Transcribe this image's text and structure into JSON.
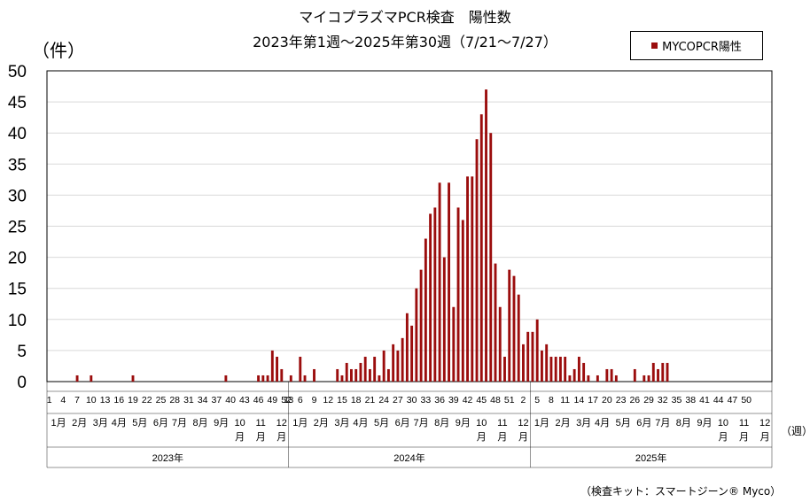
{
  "title_line1": "マイコプラズマPCR検査　陽性数",
  "title_line2": "2023年第1週～2025年第30週（7/21～7/27）",
  "y_unit": "（件）",
  "x_unit": "（週）",
  "source": "（検査キット：スマートジーン® Myco）",
  "colors": {
    "bar": "#9b0d0d",
    "grid": "#d9d9d9",
    "axis": "#000000"
  },
  "chart_data": {
    "type": "bar",
    "series": [
      {
        "name": "MYCOPCR陽性"
      }
    ],
    "ylim": [
      0,
      50
    ],
    "yticks": [
      0,
      5,
      10,
      15,
      20,
      25,
      30,
      35,
      40,
      45,
      50
    ],
    "grid": true,
    "legend_position": "top-right",
    "week_tick_labels": [
      "1",
      "4",
      "7",
      "10",
      "13",
      "16",
      "19",
      "22",
      "25",
      "28",
      "31",
      "34",
      "37",
      "40",
      "43",
      "46",
      "49",
      "52",
      "1",
      "3",
      "6",
      "9",
      "12",
      "15",
      "18",
      "21",
      "24",
      "27",
      "30",
      "33",
      "36",
      "39",
      "42",
      "45",
      "48",
      "51",
      "2",
      "5",
      "8",
      "11",
      "14",
      "17",
      "20",
      "23",
      "26",
      "29",
      "32",
      "35",
      "38",
      "41",
      "44",
      "47",
      "50"
    ],
    "month_labels": [
      {
        "label": "1月",
        "year": 2023,
        "week": 2.5
      },
      {
        "label": "2月",
        "year": 2023,
        "week": 7
      },
      {
        "label": "3月",
        "year": 2023,
        "week": 11.5
      },
      {
        "label": "4月",
        "year": 2023,
        "week": 15.5
      },
      {
        "label": "5月",
        "year": 2023,
        "week": 20
      },
      {
        "label": "6月",
        "year": 2023,
        "week": 24.5
      },
      {
        "label": "7月",
        "year": 2023,
        "week": 28.5
      },
      {
        "label": "8月",
        "year": 2023,
        "week": 33
      },
      {
        "label": "9月",
        "year": 2023,
        "week": 37.5
      },
      {
        "label": "10月",
        "year": 2023,
        "week": 41.5
      },
      {
        "label": "11月",
        "year": 2023,
        "week": 46
      },
      {
        "label": "12月",
        "year": 2023,
        "week": 50.5
      },
      {
        "label": "1月",
        "year": 2024,
        "week": 2.5
      },
      {
        "label": "2月",
        "year": 2024,
        "week": 7
      },
      {
        "label": "3月",
        "year": 2024,
        "week": 11.5
      },
      {
        "label": "4月",
        "year": 2024,
        "week": 15.5
      },
      {
        "label": "5月",
        "year": 2024,
        "week": 20
      },
      {
        "label": "6月",
        "year": 2024,
        "week": 24.5
      },
      {
        "label": "7月",
        "year": 2024,
        "week": 28.5
      },
      {
        "label": "8月",
        "year": 2024,
        "week": 33
      },
      {
        "label": "9月",
        "year": 2024,
        "week": 37.5
      },
      {
        "label": "10月",
        "year": 2024,
        "week": 41.5
      },
      {
        "label": "11月",
        "year": 2024,
        "week": 46
      },
      {
        "label": "12月",
        "year": 2024,
        "week": 50.5
      },
      {
        "label": "1月",
        "year": 2025,
        "week": 2.5
      },
      {
        "label": "2月",
        "year": 2025,
        "week": 7
      },
      {
        "label": "3月",
        "year": 2025,
        "week": 11.5
      },
      {
        "label": "4月",
        "year": 2025,
        "week": 15.5
      },
      {
        "label": "5月",
        "year": 2025,
        "week": 20
      },
      {
        "label": "6月",
        "year": 2025,
        "week": 24.5
      },
      {
        "label": "7月",
        "year": 2025,
        "week": 28.5
      },
      {
        "label": "8月",
        "year": 2025,
        "week": 33
      },
      {
        "label": "9月",
        "year": 2025,
        "week": 37.5
      },
      {
        "label": "10月",
        "year": 2025,
        "week": 41.5
      },
      {
        "label": "11月",
        "year": 2025,
        "week": 46
      },
      {
        "label": "12月",
        "year": 2025,
        "week": 50.5
      }
    ],
    "years": [
      {
        "label": "2023年",
        "year": 2023
      },
      {
        "label": "2024年",
        "year": 2024
      },
      {
        "label": "2025年",
        "year": 2025
      }
    ],
    "weeks_per_year": 52,
    "values_2023": [
      0,
      0,
      0,
      0,
      0,
      0,
      1,
      0,
      0,
      1,
      0,
      0,
      0,
      0,
      0,
      0,
      0,
      0,
      1,
      0,
      0,
      0,
      0,
      0,
      0,
      0,
      0,
      0,
      0,
      0,
      0,
      0,
      0,
      0,
      0,
      0,
      0,
      0,
      1,
      0,
      0,
      0,
      0,
      0,
      0,
      1,
      1,
      1,
      5,
      4,
      2,
      0
    ],
    "values_2024": [
      1,
      0,
      4,
      1,
      0,
      2,
      0,
      0,
      0,
      0,
      2,
      1,
      3,
      2,
      2,
      3,
      4,
      2,
      4,
      1,
      5,
      2,
      6,
      5,
      7,
      11,
      9,
      15,
      18,
      23,
      27,
      28,
      32,
      20,
      32,
      12,
      28,
      26,
      33,
      33,
      39,
      43,
      47,
      40,
      19,
      12,
      4,
      18,
      17,
      14,
      6,
      8
    ],
    "values_2025": [
      8,
      10,
      5,
      6,
      4,
      4,
      4,
      4,
      1,
      2,
      4,
      3,
      1,
      0,
      1,
      0,
      2,
      2,
      1,
      0,
      0,
      0,
      2,
      0,
      1,
      1,
      3,
      2,
      3,
      3
    ]
  }
}
